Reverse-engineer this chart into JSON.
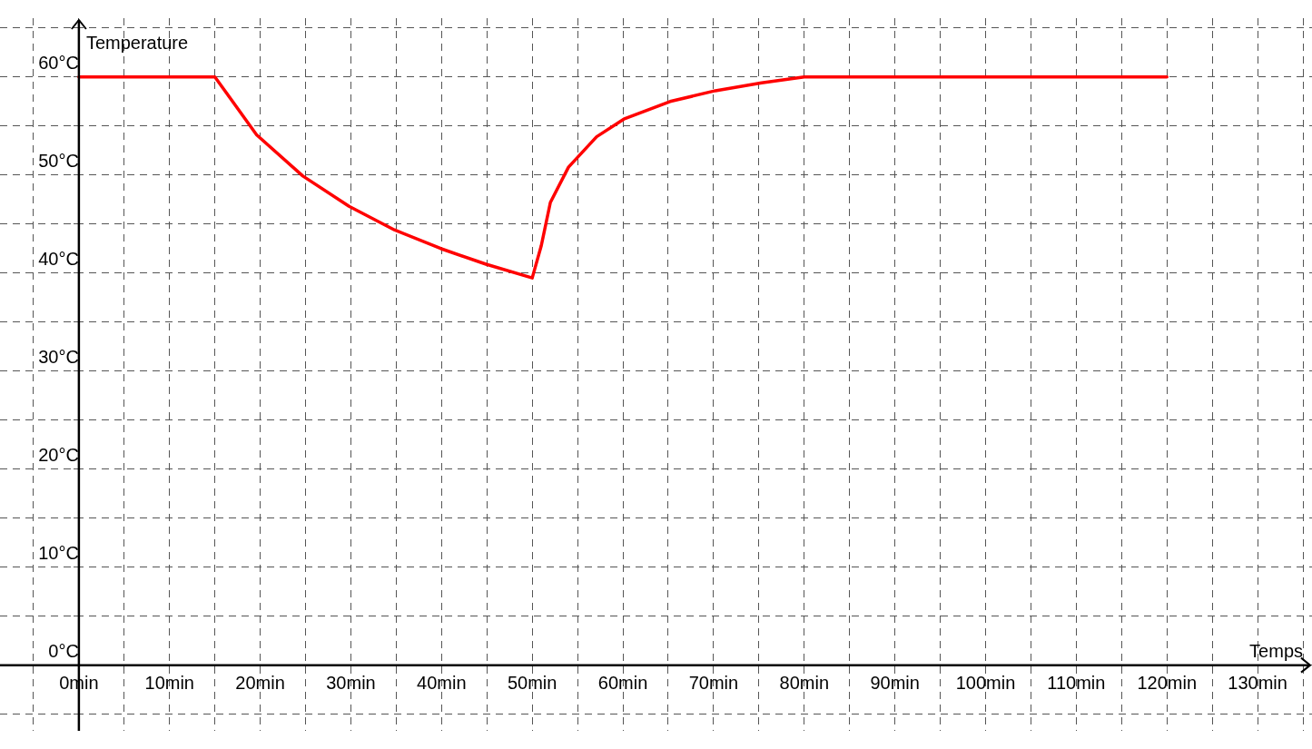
{
  "chart_data": {
    "type": "line",
    "xlabel": "Temps",
    "ylabel": "Temperature",
    "x": [
      0,
      15,
      19.6,
      24.7,
      29.8,
      34.8,
      39.9,
      44.9,
      50,
      51,
      52,
      54,
      57.1,
      60.1,
      65.2,
      70.2,
      75.3,
      80,
      120
    ],
    "series": [
      {
        "color": "#ff0000",
        "values": [
          60,
          60,
          54.1,
          49.9,
          46.8,
          44.4,
          42.5,
          40.9,
          39.5,
          42.8,
          47.2,
          50.8,
          53.9,
          55.7,
          57.5,
          58.6,
          59.4,
          60,
          60
        ]
      }
    ],
    "xlim": [
      -8.7,
      136
    ],
    "ylim": [
      -6.7,
      66
    ],
    "xticks": [
      {
        "value": -5,
        "label": null
      },
      {
        "value": 0,
        "label": "0min"
      },
      {
        "value": 5,
        "label": null
      },
      {
        "value": 10,
        "label": "10min"
      },
      {
        "value": 15,
        "label": null
      },
      {
        "value": 20,
        "label": "20min"
      },
      {
        "value": 25,
        "label": null
      },
      {
        "value": 30,
        "label": "30min"
      },
      {
        "value": 35,
        "label": null
      },
      {
        "value": 40,
        "label": "40min"
      },
      {
        "value": 45,
        "label": null
      },
      {
        "value": 50,
        "label": "50min"
      },
      {
        "value": 55,
        "label": null
      },
      {
        "value": 60,
        "label": "60min"
      },
      {
        "value": 65,
        "label": null
      },
      {
        "value": 70,
        "label": "70min"
      },
      {
        "value": 75,
        "label": null
      },
      {
        "value": 80,
        "label": "80min"
      },
      {
        "value": 85,
        "label": null
      },
      {
        "value": 90,
        "label": "90min"
      },
      {
        "value": 95,
        "label": null
      },
      {
        "value": 100,
        "label": "100min"
      },
      {
        "value": 105,
        "label": null
      },
      {
        "value": 110,
        "label": "110min"
      },
      {
        "value": 115,
        "label": null
      },
      {
        "value": 120,
        "label": "120min"
      },
      {
        "value": 125,
        "label": null
      },
      {
        "value": 130,
        "label": "130min"
      },
      {
        "value": 135,
        "label": null
      }
    ],
    "yticks": [
      {
        "value": -5,
        "label": null
      },
      {
        "value": 0,
        "label": "0°C"
      },
      {
        "value": 5,
        "label": null
      },
      {
        "value": 10,
        "label": "10°C"
      },
      {
        "value": 15,
        "label": null
      },
      {
        "value": 20,
        "label": "20°C"
      },
      {
        "value": 25,
        "label": null
      },
      {
        "value": 30,
        "label": "30°C"
      },
      {
        "value": 35,
        "label": null
      },
      {
        "value": 40,
        "label": "40°C"
      },
      {
        "value": 45,
        "label": null
      },
      {
        "value": 50,
        "label": "50°C"
      },
      {
        "value": 55,
        "label": null
      },
      {
        "value": 60,
        "label": "60°C"
      },
      {
        "value": 65,
        "label": null
      }
    ],
    "grid": true,
    "legend": false,
    "marker": "none",
    "line_style": "solid"
  }
}
